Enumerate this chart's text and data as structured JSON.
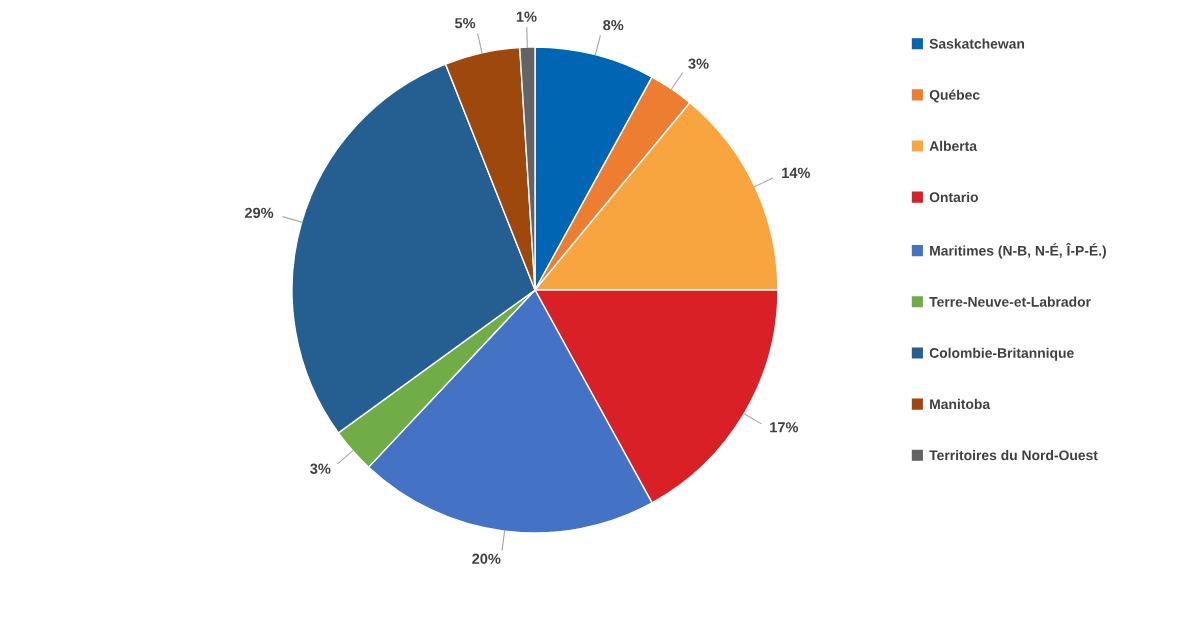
{
  "chart_data": {
    "type": "pie",
    "categories": [
      "Saskatchewan",
      "Québec",
      "Alberta",
      "Ontario",
      "Maritimes (N-B, N-É, Î-P-É.)",
      "Terre-Neuve-et-Labrador",
      "Colombie-Britannique",
      "Manitoba",
      "Territoires du Nord-Ouest"
    ],
    "values": [
      8,
      3,
      14,
      17,
      20,
      3,
      29,
      5,
      1
    ],
    "value_labels": [
      "8%",
      "3%",
      "14%",
      "17%",
      "20%",
      "3%",
      "29%",
      "5%",
      "1%"
    ],
    "colors": [
      "#0066b3",
      "#ed7d31",
      "#f9a53f",
      "#d92027",
      "#4472c4",
      "#70ad47",
      "#255e91",
      "#9e480e",
      "#636363"
    ],
    "legend": "right"
  }
}
